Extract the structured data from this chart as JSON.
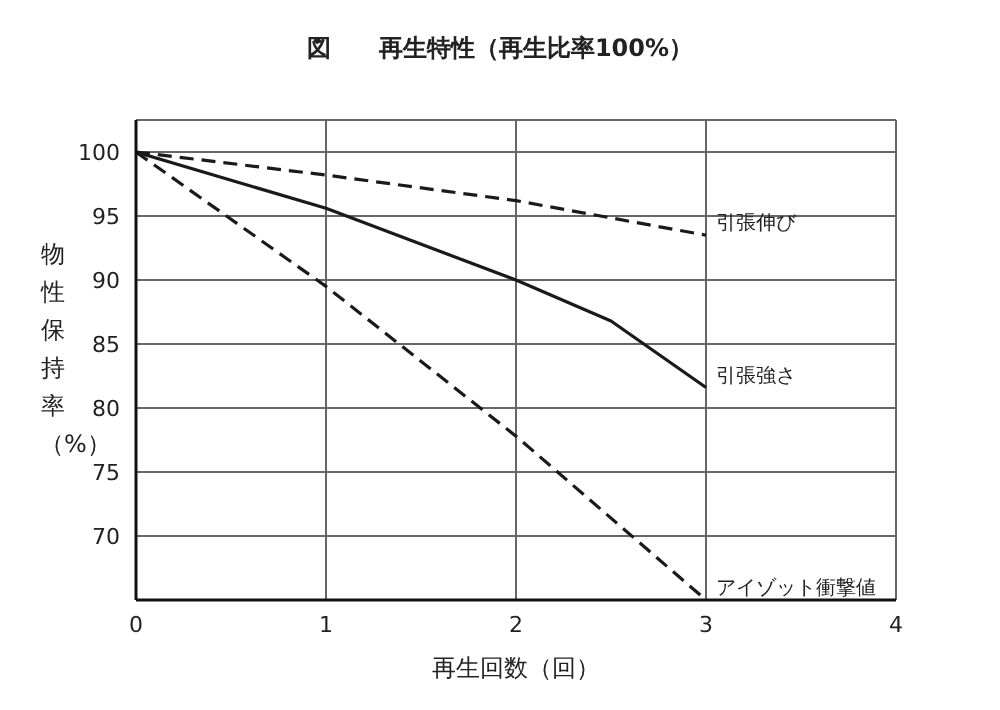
{
  "chart_data": {
    "type": "line",
    "title": "図　　再生特性（再生比率100%）",
    "xlabel": "再生回数（回）",
    "ylabel": "物性保持率（%）",
    "xlim": [
      0,
      4
    ],
    "xticks": [
      0,
      1,
      2,
      3,
      4
    ],
    "ylim": [
      65,
      102.5
    ],
    "yticks": [
      70,
      75,
      80,
      85,
      90,
      95,
      100
    ],
    "grid": true,
    "legend": false,
    "marker": "none",
    "series": [
      {
        "name": "引張伸び",
        "color": "#1a1a1a",
        "line_style": "dashed",
        "x": [
          0,
          1,
          2,
          3
        ],
        "values": [
          100,
          98.2,
          96.2,
          93.5
        ]
      },
      {
        "name": "引張強さ",
        "color": "#1a1a1a",
        "line_style": "solid",
        "x": [
          0,
          1,
          2,
          2.5,
          3
        ],
        "values": [
          100,
          95.6,
          90,
          86.8,
          81.6
        ]
      },
      {
        "name": "アイゾット衝撃値",
        "color": "#1a1a1a",
        "line_style": "dashed",
        "x": [
          0,
          1,
          2,
          3
        ],
        "values": [
          100,
          89.5,
          77.8,
          65
        ]
      }
    ]
  }
}
